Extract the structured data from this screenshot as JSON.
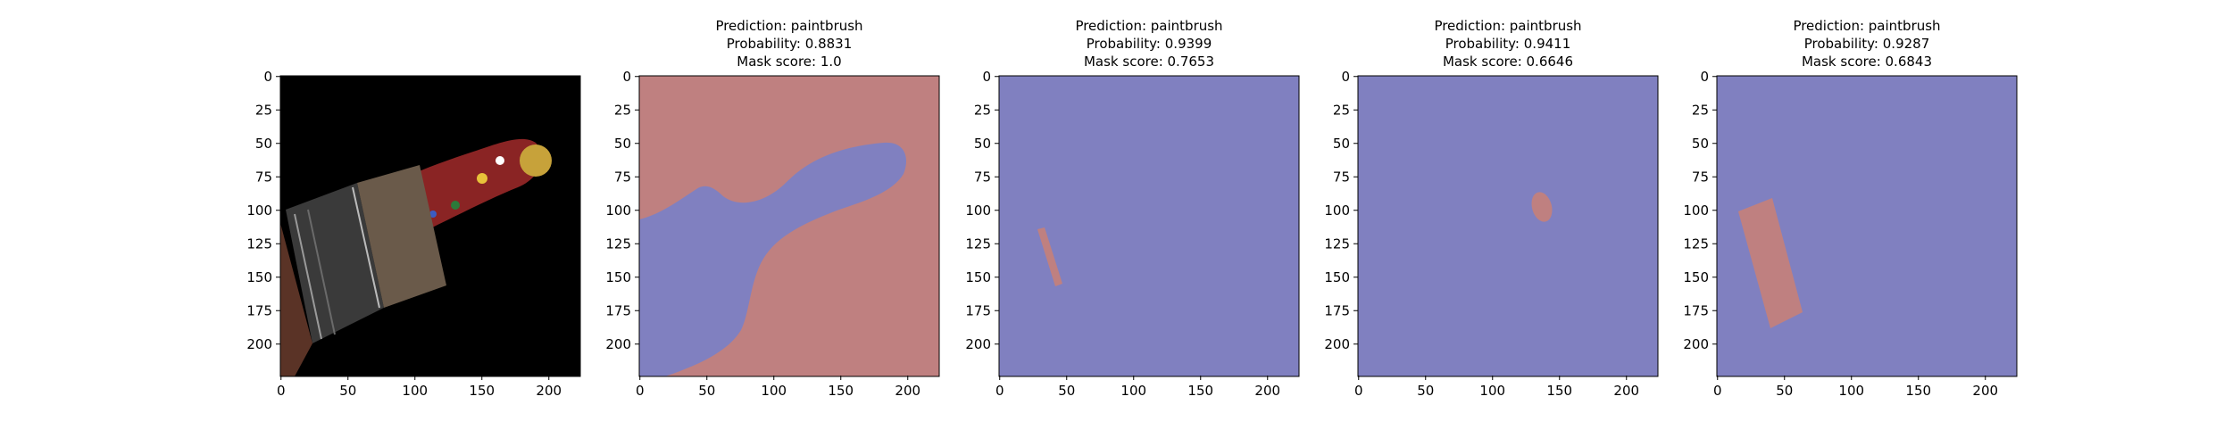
{
  "figure": {
    "panels": [
      {
        "kind": "photo",
        "title_lines": [],
        "subject": "paintbrush photo",
        "x_ticks": [
          "0",
          "50",
          "100",
          "150",
          "200"
        ],
        "y_ticks": [
          "0",
          "25",
          "50",
          "75",
          "100",
          "125",
          "150",
          "175",
          "200"
        ]
      },
      {
        "kind": "mask",
        "title_lines": [
          "Prediction: paintbrush",
          "Probability: 0.8831",
          "Mask score: 1.0"
        ],
        "x_ticks": [
          "0",
          "50",
          "100",
          "150",
          "200"
        ],
        "y_ticks": [
          "0",
          "25",
          "50",
          "75",
          "100",
          "125",
          "150",
          "175",
          "200"
        ]
      },
      {
        "kind": "mask",
        "title_lines": [
          "Prediction: paintbrush",
          "Probability: 0.9399",
          "Mask score: 0.7653"
        ],
        "x_ticks": [
          "0",
          "50",
          "100",
          "150",
          "200"
        ],
        "y_ticks": [
          "0",
          "25",
          "50",
          "75",
          "100",
          "125",
          "150",
          "175",
          "200"
        ]
      },
      {
        "kind": "mask",
        "title_lines": [
          "Prediction: paintbrush",
          "Probability: 0.9411",
          "Mask score: 0.6646"
        ],
        "x_ticks": [
          "0",
          "50",
          "100",
          "150",
          "200"
        ],
        "y_ticks": [
          "0",
          "25",
          "50",
          "75",
          "100",
          "125",
          "150",
          "175",
          "200"
        ]
      },
      {
        "kind": "mask",
        "title_lines": [
          "Prediction: paintbrush",
          "Probability: 0.9287",
          "Mask score: 0.6843"
        ],
        "x_ticks": [
          "0",
          "50",
          "100",
          "150",
          "200"
        ],
        "y_ticks": [
          "0",
          "25",
          "50",
          "75",
          "100",
          "125",
          "150",
          "175",
          "200"
        ]
      }
    ],
    "colors": {
      "mask_background": "#8080c0",
      "mask_foreground": "#bf8080",
      "photo_background": "#000000",
      "axis": "#000000"
    }
  }
}
